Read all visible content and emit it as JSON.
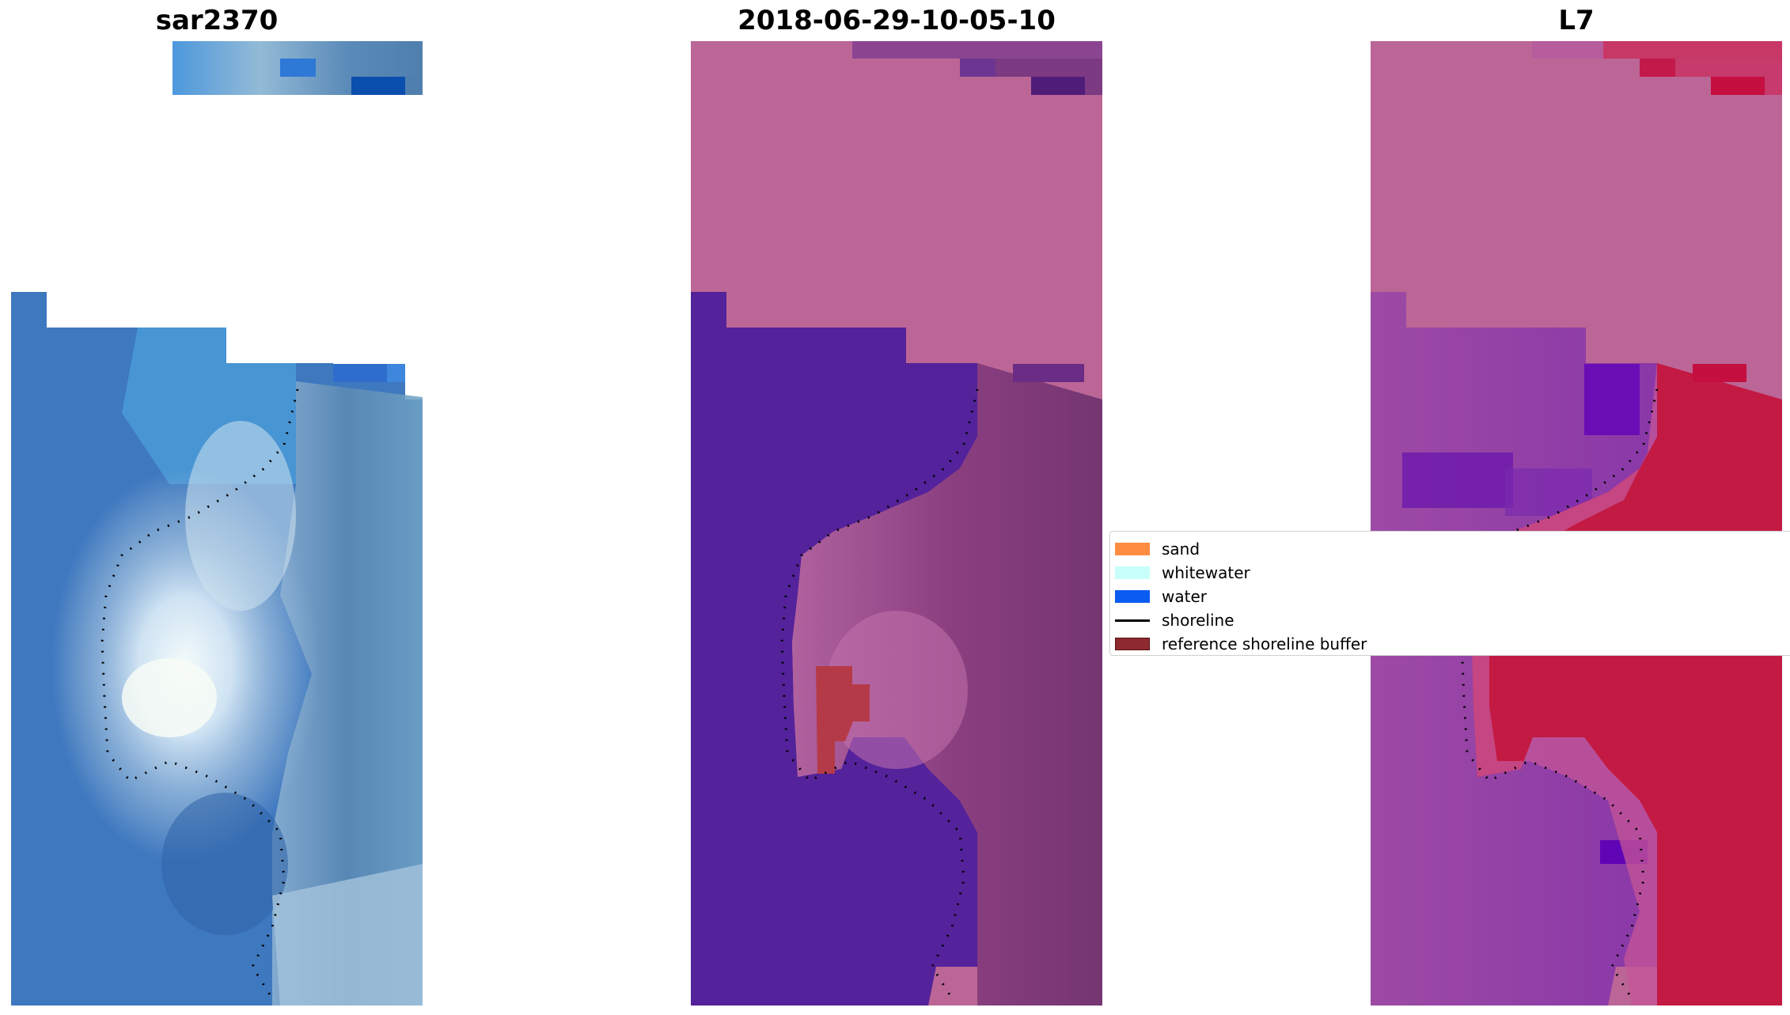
{
  "panels": [
    {
      "id": "sar",
      "title": "sar2370"
    },
    {
      "id": "classified",
      "title": "2018-06-29-10-05-10"
    },
    {
      "id": "l7",
      "title": "L7"
    }
  ],
  "legend": [
    {
      "label": "sand",
      "kind": "patch",
      "color": "#ff8c40"
    },
    {
      "label": "whitewater",
      "kind": "patch",
      "color": "#c8fffa"
    },
    {
      "label": "water",
      "kind": "patch",
      "color": "#0a5cf0"
    },
    {
      "label": "shoreline",
      "kind": "line",
      "color": "#000000"
    },
    {
      "label": "reference shoreline buffer",
      "kind": "patch",
      "color": "#8c2a30"
    }
  ],
  "colors": {
    "pink_background": "#bb6696",
    "water_purple": "#54229a",
    "buffer_red": "#b53a48",
    "l7_red": "#c31a44",
    "sar_blue": "#3e78bf"
  },
  "icons": [
    "shoreline-dots",
    "image-raster"
  ]
}
